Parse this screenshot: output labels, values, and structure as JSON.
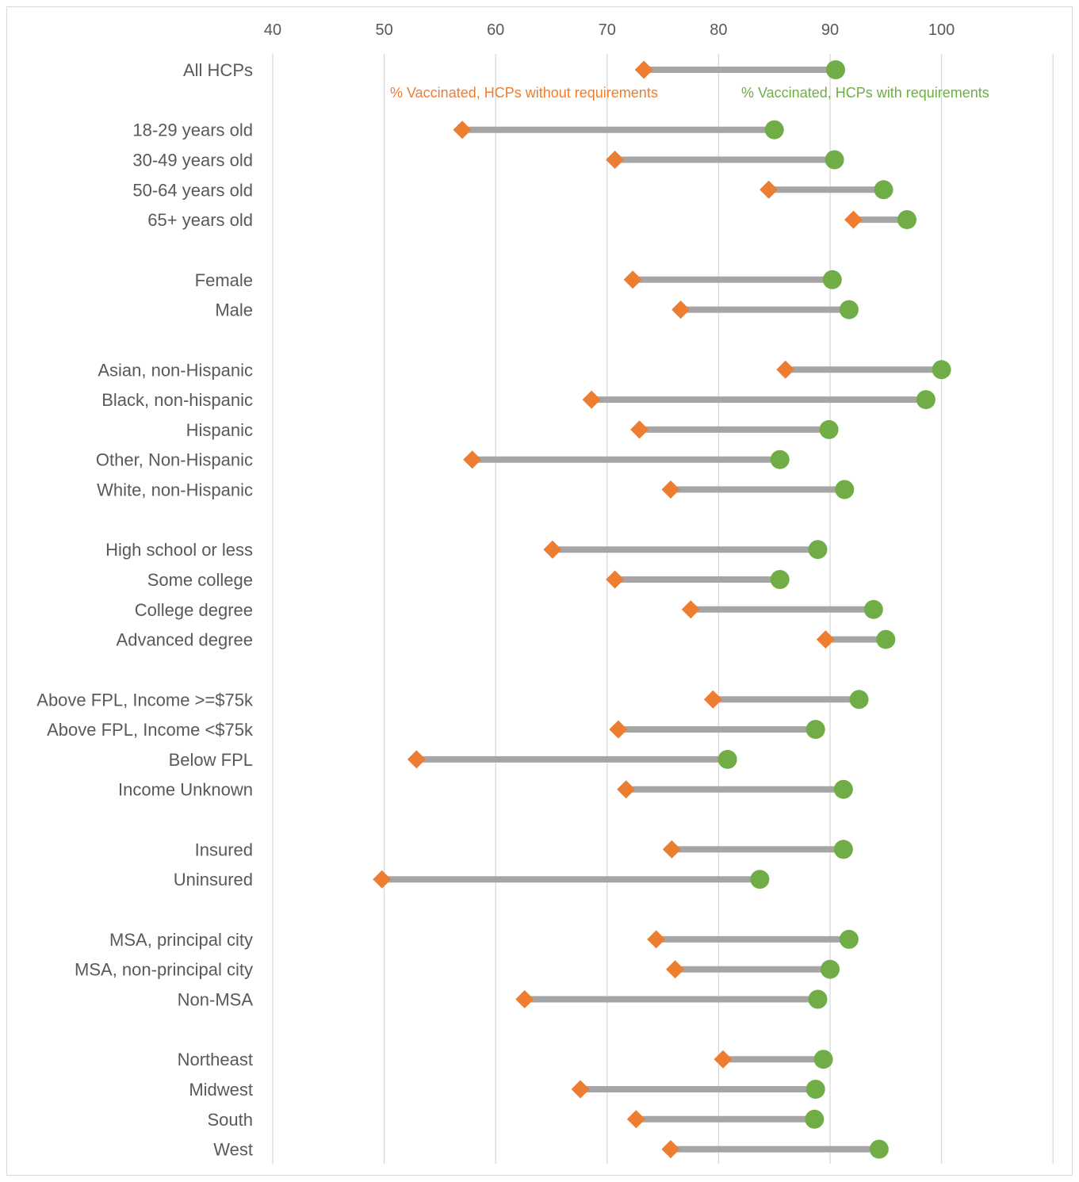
{
  "chart_data": {
    "type": "dumbbell",
    "title": "",
    "xlabel": "",
    "ylabel": "",
    "xlim": [
      40,
      110
    ],
    "x_ticks": [
      40,
      50,
      60,
      70,
      80,
      90,
      100
    ],
    "x_tick_labels": [
      "40",
      "50",
      "60",
      "70",
      "80",
      "90",
      "100"
    ],
    "grid": true,
    "series": [
      {
        "name": "% Vaccinated, HCPs without requirements",
        "marker": "diamond",
        "color": "#ed7d31"
      },
      {
        "name": "% Vaccinated, HCPs with requirements",
        "marker": "circle",
        "color": "#70ad47"
      }
    ],
    "connector_color": "#a5a5a5",
    "rows": [
      {
        "label": "All HCPs",
        "without": 73.3,
        "with": 90.5,
        "gap_after": true
      },
      {
        "label": "18-29 years old",
        "without": 57.0,
        "with": 85.0
      },
      {
        "label": "30-49 years old",
        "without": 70.7,
        "with": 90.4
      },
      {
        "label": "50-64 years old",
        "without": 84.5,
        "with": 94.8
      },
      {
        "label": "65+ years old",
        "without": 92.1,
        "with": 96.9,
        "gap_after": true
      },
      {
        "label": "Female",
        "without": 72.3,
        "with": 90.2
      },
      {
        "label": "Male",
        "without": 76.6,
        "with": 91.7,
        "gap_after": true
      },
      {
        "label": "Asian, non-Hispanic",
        "without": 86.0,
        "with": 100.0
      },
      {
        "label": "Black, non-hispanic",
        "without": 68.6,
        "with": 98.6
      },
      {
        "label": "Hispanic",
        "without": 72.9,
        "with": 89.9
      },
      {
        "label": "Other, Non-Hispanic",
        "without": 57.9,
        "with": 85.5
      },
      {
        "label": "White, non-Hispanic",
        "without": 75.7,
        "with": 91.3,
        "gap_after": true
      },
      {
        "label": "High school or less",
        "without": 65.1,
        "with": 88.9
      },
      {
        "label": "Some college",
        "without": 70.7,
        "with": 85.5
      },
      {
        "label": "College degree",
        "without": 77.5,
        "with": 93.9
      },
      {
        "label": "Advanced degree",
        "without": 89.6,
        "with": 95.0,
        "gap_after": true
      },
      {
        "label": "Above FPL, Income >=$75k",
        "without": 79.5,
        "with": 92.6
      },
      {
        "label": "Above FPL, Income <$75k",
        "without": 71.0,
        "with": 88.7
      },
      {
        "label": "Below FPL",
        "without": 52.9,
        "with": 80.8
      },
      {
        "label": "Income Unknown",
        "without": 71.7,
        "with": 91.2,
        "gap_after": true
      },
      {
        "label": "Insured",
        "without": 75.8,
        "with": 91.2
      },
      {
        "label": "Uninsured",
        "without": 49.8,
        "with": 83.7,
        "gap_after": true
      },
      {
        "label": "MSA, principal city",
        "without": 74.4,
        "with": 91.7
      },
      {
        "label": "MSA, non-principal city",
        "without": 76.1,
        "with": 90.0
      },
      {
        "label": "Non-MSA",
        "without": 62.6,
        "with": 88.9,
        "gap_after": true
      },
      {
        "label": "Northeast",
        "without": 80.4,
        "with": 89.4
      },
      {
        "label": "Midwest",
        "without": 67.6,
        "with": 88.7
      },
      {
        "label": "South",
        "without": 72.6,
        "with": 88.6
      },
      {
        "label": "West",
        "without": 75.7,
        "with": 94.4
      }
    ]
  }
}
